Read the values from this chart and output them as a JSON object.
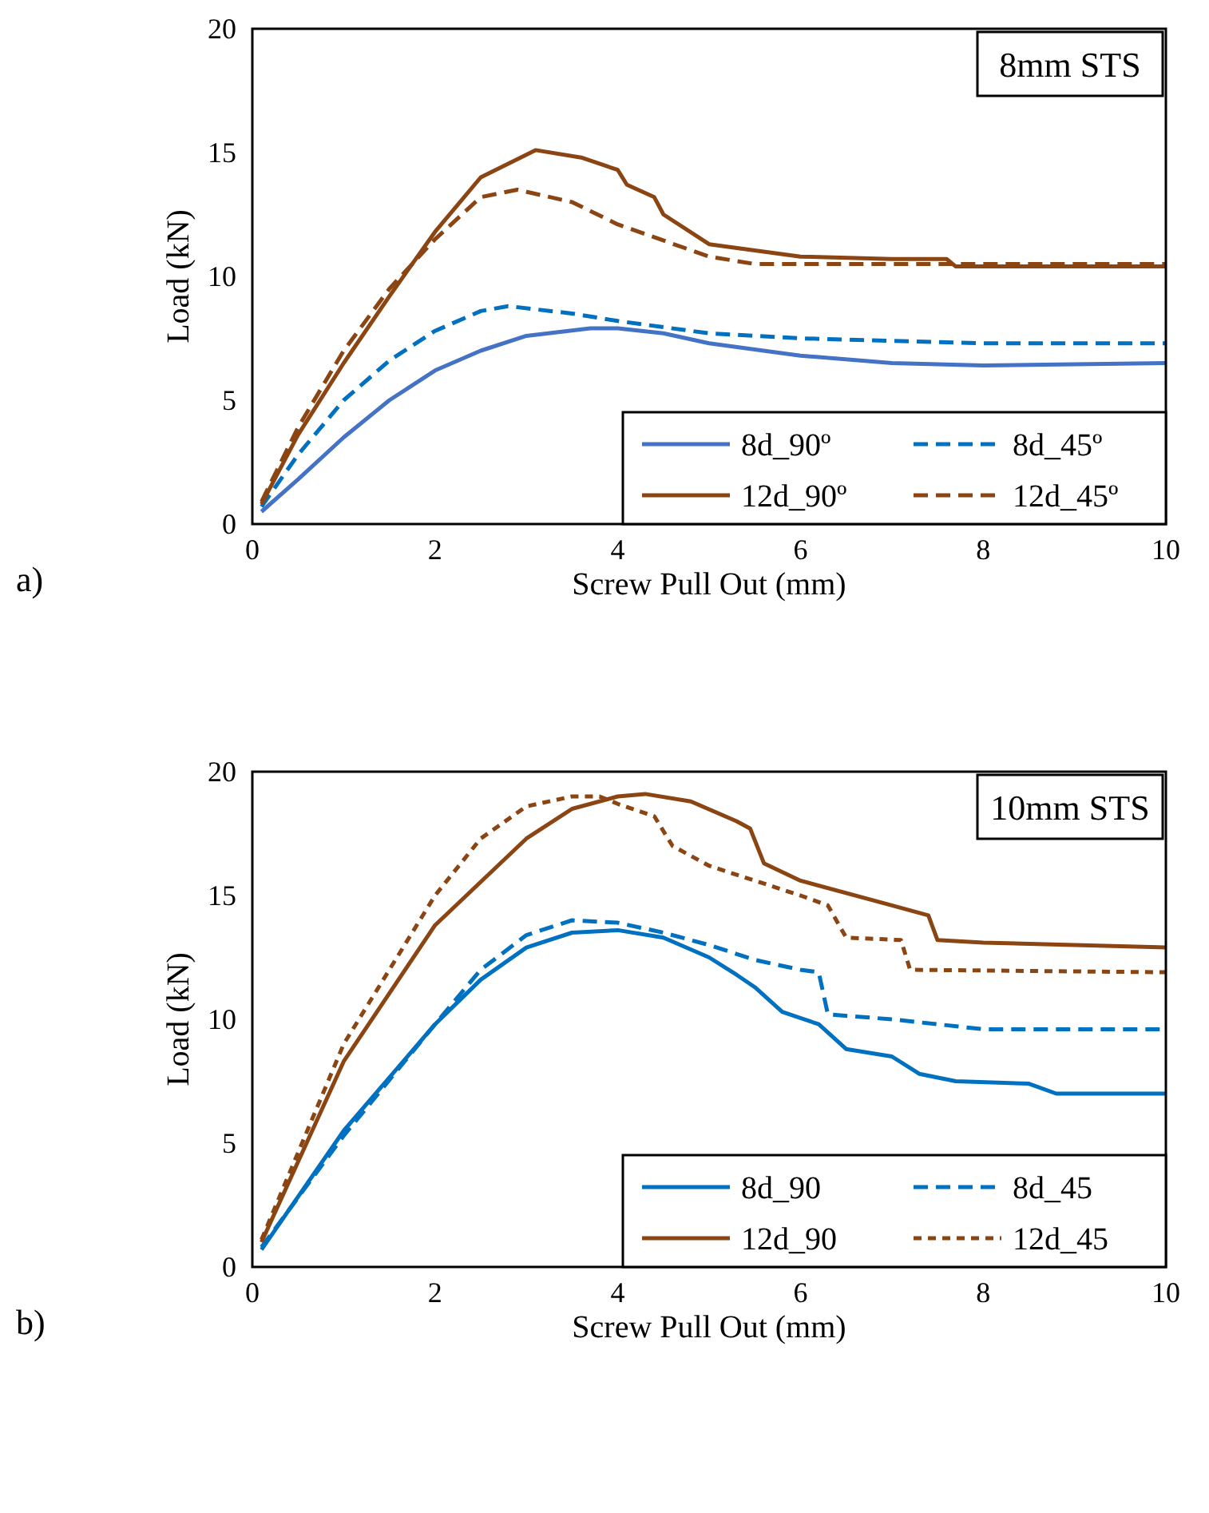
{
  "chart_data": [
    {
      "type": "line",
      "xlabel": "Screw Pull Out (mm)",
      "ylabel": "Load (kN)",
      "xlim": [
        0,
        10
      ],
      "xticks": [
        0,
        2,
        4,
        6,
        8,
        10
      ],
      "ylim": [
        0,
        20
      ],
      "yticks": [
        0,
        5,
        10,
        15,
        20
      ],
      "legend": "bottom right",
      "annotations": [
        "8mm STS",
        "a)"
      ],
      "series": [
        {
          "name": "8d_90º",
          "color": "#4472c4",
          "line_style": "solid",
          "x": [
            0.1,
            0.5,
            1,
            1.5,
            2,
            2.5,
            3,
            3.7,
            4,
            4.5,
            5,
            6,
            7,
            8,
            10
          ],
          "values": [
            0.5,
            1.8,
            3.5,
            5,
            6.2,
            7,
            7.6,
            7.9,
            7.9,
            7.7,
            7.3,
            6.8,
            6.5,
            6.4,
            6.5
          ]
        },
        {
          "name": "8d_45º",
          "color": "#0070c0",
          "line_style": "dashed",
          "x": [
            0.1,
            0.5,
            1,
            1.5,
            2,
            2.5,
            2.8,
            3.5,
            4,
            5,
            6,
            7,
            8,
            10
          ],
          "values": [
            0.7,
            2.8,
            5,
            6.6,
            7.8,
            8.6,
            8.8,
            8.5,
            8.2,
            7.7,
            7.5,
            7.4,
            7.3,
            7.3
          ]
        },
        {
          "name": "12d_90º",
          "color": "#8b4513",
          "line_style": "solid",
          "x": [
            0.1,
            0.5,
            1,
            1.5,
            2,
            2.5,
            3.1,
            3.6,
            4,
            4.1,
            4.4,
            4.5,
            5,
            6,
            7,
            7.6,
            7.7,
            10
          ],
          "values": [
            0.8,
            3.6,
            6.5,
            9.2,
            11.8,
            14,
            15.1,
            14.8,
            14.3,
            13.7,
            13.2,
            12.5,
            11.3,
            10.8,
            10.7,
            10.7,
            10.4,
            10.4
          ]
        },
        {
          "name": "12d_45º",
          "color": "#8b4513",
          "line_style": "dashed",
          "x": [
            0.1,
            0.5,
            1,
            1.5,
            2,
            2.5,
            2.9,
            3.5,
            4,
            5,
            5.5,
            10
          ],
          "values": [
            0.9,
            3.9,
            7,
            9.5,
            11.5,
            13.2,
            13.5,
            13,
            12.1,
            10.8,
            10.5,
            10.5
          ]
        }
      ]
    },
    {
      "type": "line",
      "xlabel": "Screw Pull Out (mm)",
      "ylabel": "Load (kN)",
      "xlim": [
        0,
        10
      ],
      "xticks": [
        0,
        2,
        4,
        6,
        8,
        10
      ],
      "ylim": [
        0,
        20
      ],
      "yticks": [
        0,
        5,
        10,
        15,
        20
      ],
      "legend": "bottom right",
      "annotations": [
        "10mm STS",
        "b)"
      ],
      "series": [
        {
          "name": "8d_90",
          "color": "#0070c0",
          "line_style": "solid",
          "x": [
            0.1,
            1,
            2,
            2.5,
            3,
            3.5,
            4,
            4.5,
            5,
            5.3,
            5.5,
            5.8,
            6.2,
            6.5,
            7,
            7.3,
            7.7,
            8.5,
            8.8,
            10
          ],
          "values": [
            0.7,
            5.5,
            9.8,
            11.6,
            12.9,
            13.5,
            13.6,
            13.3,
            12.5,
            11.8,
            11.3,
            10.3,
            9.8,
            8.8,
            8.5,
            7.8,
            7.5,
            7.4,
            7,
            7
          ]
        },
        {
          "name": "8d_45",
          "color": "#0070c0",
          "line_style": "dashed",
          "x": [
            0.1,
            1,
            2,
            2.5,
            3,
            3.5,
            4,
            4.5,
            5,
            5.5,
            6,
            6.2,
            6.3,
            7,
            8,
            10
          ],
          "values": [
            0.8,
            5.3,
            9.8,
            12,
            13.4,
            14,
            13.9,
            13.5,
            13,
            12.4,
            12,
            11.9,
            10.2,
            10,
            9.6,
            9.6
          ]
        },
        {
          "name": "12d_90",
          "color": "#8b4513",
          "line_style": "solid",
          "x": [
            0.1,
            1,
            2,
            3,
            3.5,
            4,
            4.3,
            4.8,
            5.3,
            5.45,
            5.6,
            6,
            7,
            7.4,
            7.5,
            8,
            10
          ],
          "values": [
            1,
            8.3,
            13.8,
            17.3,
            18.5,
            19,
            19.1,
            18.8,
            18,
            17.7,
            16.3,
            15.6,
            14.6,
            14.2,
            13.2,
            13.1,
            12.9
          ]
        },
        {
          "name": "12d_45",
          "color": "#8b4513",
          "line_style": "dotted",
          "x": [
            0.1,
            1,
            2,
            2.5,
            3,
            3.5,
            3.8,
            4,
            4.4,
            4.6,
            5,
            6,
            6.3,
            6.5,
            7.1,
            7.2,
            10
          ],
          "values": [
            1.1,
            9,
            15,
            17.3,
            18.6,
            19,
            19,
            18.7,
            18.2,
            17,
            16.2,
            15,
            14.6,
            13.3,
            13.2,
            12,
            11.9
          ]
        }
      ]
    }
  ]
}
